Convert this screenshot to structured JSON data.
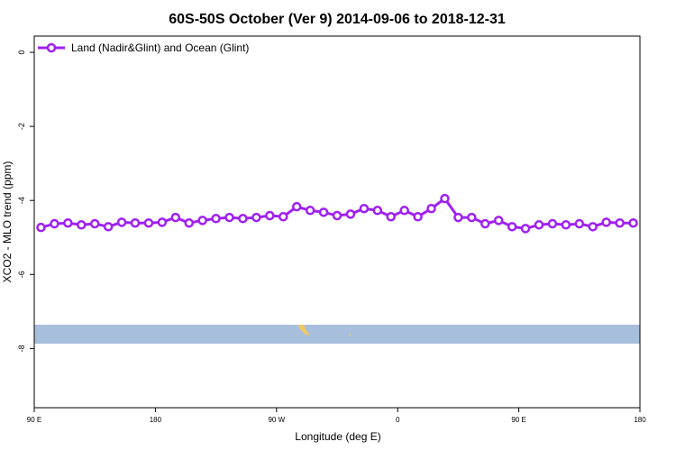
{
  "chart_data": {
    "type": "line",
    "title": "60S-50S October (Ver 9)   2014-09-06 to 2018-12-31",
    "xlabel": "Longitude (deg E)",
    "ylabel": "XCO2 - MLO trend (ppm)",
    "x": [
      95,
      105,
      115,
      125,
      135,
      145,
      155,
      165,
      175,
      185,
      195,
      205,
      215,
      225,
      235,
      245,
      255,
      265,
      275,
      285,
      295,
      305,
      315,
      325,
      335,
      345,
      355,
      365,
      375,
      385,
      395,
      405,
      415,
      425,
      435,
      445,
      455,
      465,
      475,
      485,
      495,
      505,
      515,
      525,
      535
    ],
    "series": [
      {
        "name": "Land (Nadir&Glint) and Ocean (Glint)",
        "color": "#a020f0",
        "values": [
          -4.73,
          -4.63,
          -4.61,
          -4.66,
          -4.63,
          -4.71,
          -4.59,
          -4.61,
          -4.61,
          -4.59,
          -4.46,
          -4.61,
          -4.54,
          -4.49,
          -4.46,
          -4.49,
          -4.46,
          -4.41,
          -4.44,
          -4.17,
          -4.27,
          -4.32,
          -4.41,
          -4.37,
          -4.22,
          -4.27,
          -4.44,
          -4.27,
          -4.44,
          -4.22,
          -3.95,
          -4.46,
          -4.46,
          -4.63,
          -4.54,
          -4.71,
          -4.76,
          -4.66,
          -4.63,
          -4.66,
          -4.63,
          -4.71,
          -4.59,
          -4.61,
          -4.61
        ]
      }
    ],
    "xlim": [
      90,
      540
    ],
    "xticks": [
      {
        "value": 90,
        "label": "90 E"
      },
      180,
      {
        "value": 270,
        "label": "90 W"
      },
      {
        "value": 360,
        "label": "0"
      },
      {
        "value": 450,
        "label": "90 E"
      },
      {
        "value": 540,
        "label": "180"
      }
    ],
    "ylim": [
      -9.6,
      0.44
    ],
    "yticks": [
      0,
      -2,
      -4,
      -6,
      -8
    ],
    "legend": "top-left"
  }
}
